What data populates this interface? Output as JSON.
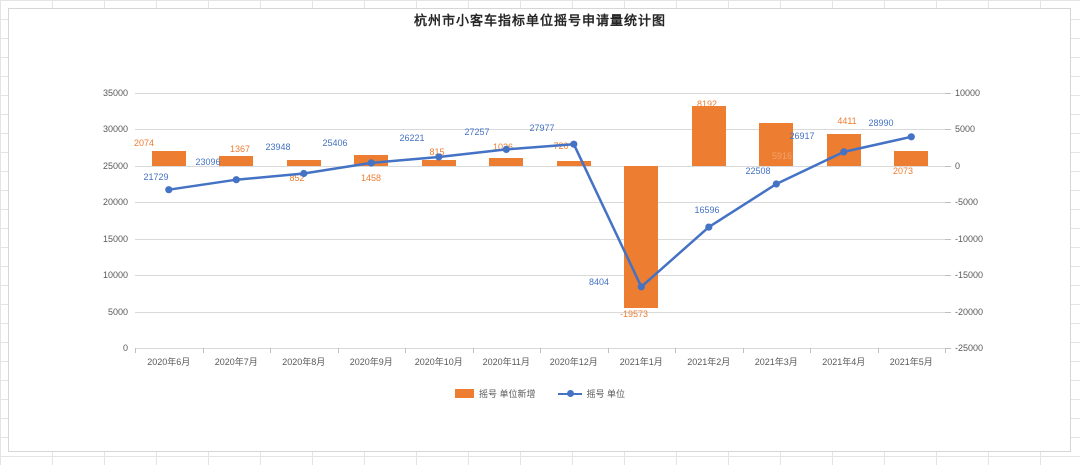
{
  "title": "杭州市小客车指标单位摇号申请量统计图",
  "colors": {
    "bar": "#ED7D31",
    "line": "#4472C4",
    "axis_text": "#595959",
    "gridline": "#D9D9D9",
    "title_text": "#262626"
  },
  "legend": {
    "bar_label": "摇号 单位新增",
    "line_label": "摇号 单位"
  },
  "chart_data": {
    "type": "combo (bar + line)",
    "title": "杭州市小客车指标单位摇号申请量统计图",
    "categories": [
      "2020年6月",
      "2020年7月",
      "2020年8月",
      "2020年9月",
      "2020年10月",
      "2020年11月",
      "2020年12月",
      "2021年1月",
      "2021年2月",
      "2021年3月",
      "2021年4月",
      "2021年5月"
    ],
    "series": [
      {
        "name": "摇号 单位新增",
        "type": "bar",
        "axis": "right",
        "color": "#ED7D31",
        "values": [
          2074,
          1367,
          852,
          1458,
          815,
          1026,
          720,
          -19573,
          8192,
          5916,
          4411,
          2073
        ]
      },
      {
        "name": "摇号 单位",
        "type": "line",
        "axis": "left",
        "color": "#4472C4",
        "values": [
          21729,
          23096,
          23948,
          25406,
          26221,
          27257,
          27977,
          8404,
          16596,
          22508,
          26917,
          28990
        ]
      }
    ],
    "left_axis": {
      "min": 0,
      "max": 35000,
      "step": 5000,
      "ticks": [
        "0",
        "5000",
        "10000",
        "15000",
        "20000",
        "25000",
        "30000",
        "35000"
      ]
    },
    "right_axis": {
      "min": -25000,
      "max": 10000,
      "step": 5000,
      "ticks": [
        "-25000",
        "-20000",
        "-15000",
        "-10000",
        "-5000",
        "0",
        "5000",
        "10000"
      ]
    },
    "grid": true,
    "legend_position": "bottom",
    "data_labels": true
  }
}
